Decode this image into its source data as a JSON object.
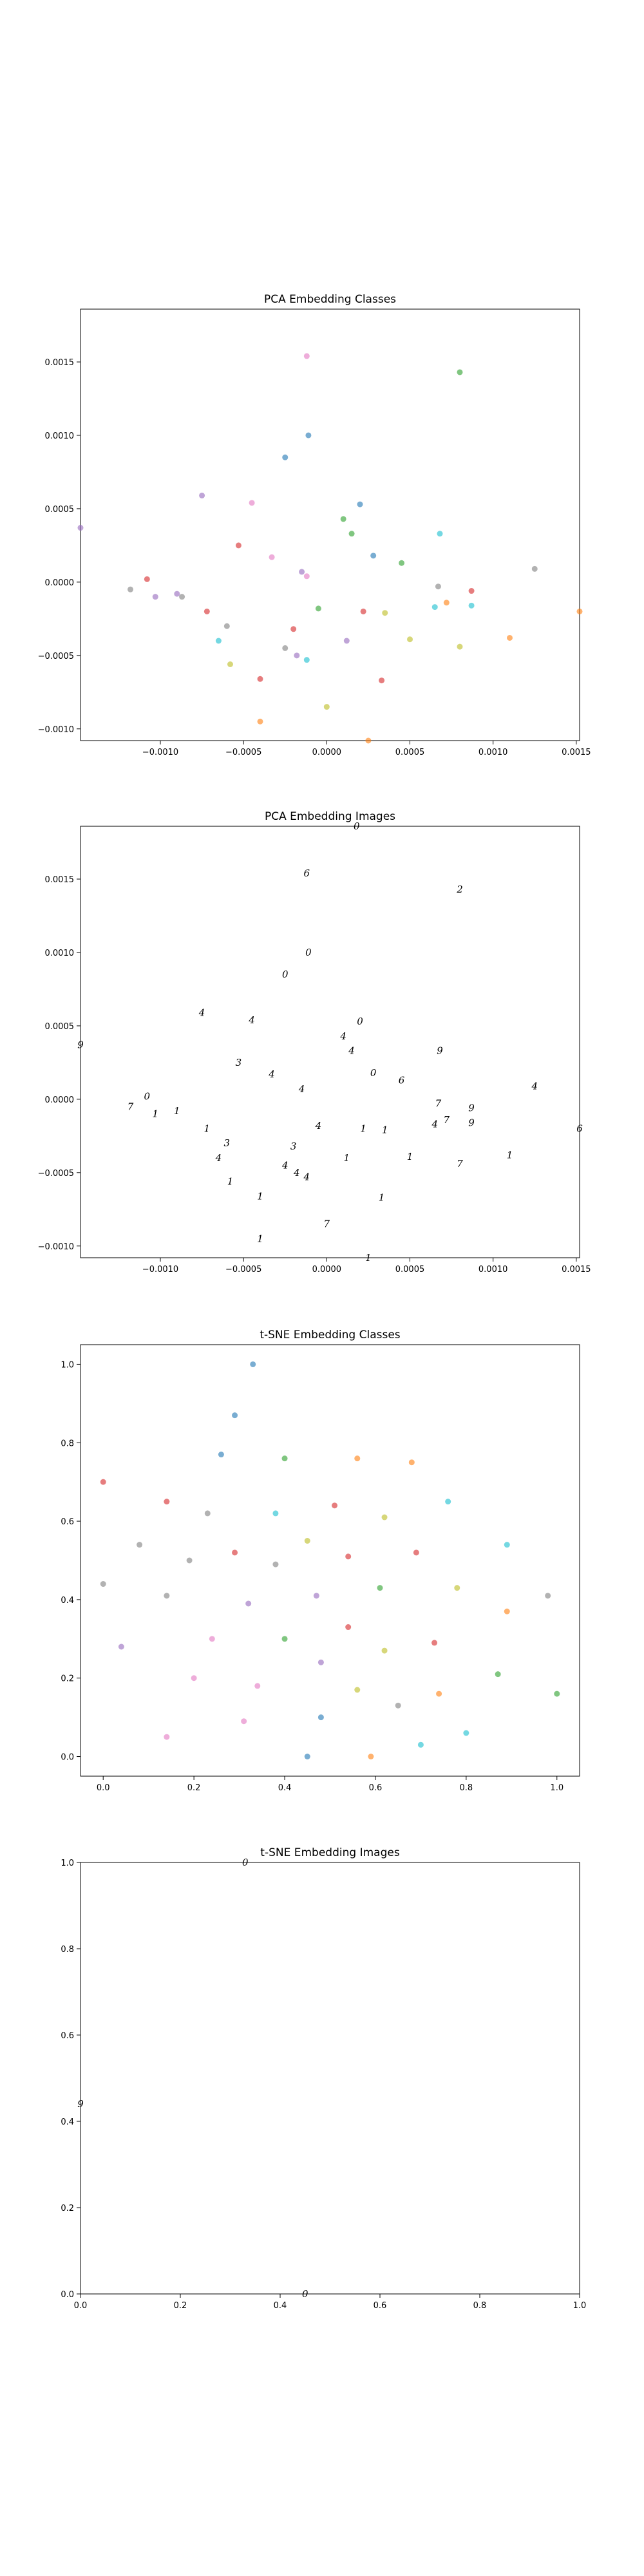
{
  "chart_data": [
    {
      "type": "scatter",
      "title": "PCA Embedding Classes",
      "xlabel": "",
      "ylabel": "",
      "xlim": [
        -0.00148,
        0.00152
      ],
      "ylim": [
        -0.00108,
        0.00186
      ],
      "xticks": [
        -0.001,
        -0.0005,
        0.0,
        0.0005,
        0.001,
        0.0015
      ],
      "xtick_labels": [
        "−0.0010",
        "−0.0005",
        "0.0000",
        "0.0005",
        "0.0010",
        "0.0015"
      ],
      "yticks": [
        -0.001,
        -0.0005,
        0.0,
        0.0005,
        0.001,
        0.0015
      ],
      "ytick_labels": [
        "−0.0010",
        "−0.0005",
        "0.0000",
        "0.0005",
        "0.0010",
        "0.0015"
      ],
      "grid": false,
      "marker": "dot",
      "points": [
        {
          "x": -0.00148,
          "y": 0.00037,
          "c": "#9467bd"
        },
        {
          "x": -0.00118,
          "y": -5e-05,
          "c": "#7f7f7f"
        },
        {
          "x": -0.00108,
          "y": 2e-05,
          "c": "#d62728"
        },
        {
          "x": -0.00103,
          "y": -0.0001,
          "c": "#9467bd"
        },
        {
          "x": -0.0009,
          "y": -8e-05,
          "c": "#9467bd"
        },
        {
          "x": -0.00087,
          "y": -0.0001,
          "c": "#7f7f7f"
        },
        {
          "x": -0.00075,
          "y": 0.00059,
          "c": "#9467bd"
        },
        {
          "x": -0.00072,
          "y": -0.0002,
          "c": "#d62728"
        },
        {
          "x": -0.00065,
          "y": -0.0004,
          "c": "#17becf"
        },
        {
          "x": -0.0006,
          "y": -0.0003,
          "c": "#7f7f7f"
        },
        {
          "x": -0.00058,
          "y": -0.00056,
          "c": "#bcbd22"
        },
        {
          "x": -0.00053,
          "y": 0.00025,
          "c": "#d62728"
        },
        {
          "x": -0.00045,
          "y": 0.00054,
          "c": "#e377c2"
        },
        {
          "x": -0.0004,
          "y": -0.00095,
          "c": "#ff7f0e"
        },
        {
          "x": -0.0004,
          "y": -0.00066,
          "c": "#d62728"
        },
        {
          "x": -0.00033,
          "y": 0.00017,
          "c": "#e377c2"
        },
        {
          "x": -0.00025,
          "y": 0.00085,
          "c": "#1f77b4"
        },
        {
          "x": -0.00025,
          "y": -0.00045,
          "c": "#7f7f7f"
        },
        {
          "x": -0.0002,
          "y": -0.00032,
          "c": "#d62728"
        },
        {
          "x": -0.00018,
          "y": -0.0005,
          "c": "#9467bd"
        },
        {
          "x": -0.00015,
          "y": 7e-05,
          "c": "#9467bd"
        },
        {
          "x": -0.00012,
          "y": 0.00154,
          "c": "#e377c2"
        },
        {
          "x": -0.00011,
          "y": 0.001,
          "c": "#1f77b4"
        },
        {
          "x": -0.00012,
          "y": -0.00053,
          "c": "#17becf"
        },
        {
          "x": -0.00012,
          "y": 4e-05,
          "c": "#e377c2"
        },
        {
          "x": -5e-05,
          "y": -0.00018,
          "c": "#2ca02c"
        },
        {
          "x": 0.0,
          "y": -0.00085,
          "c": "#bcbd22"
        },
        {
          "x": 0.0001,
          "y": 0.00043,
          "c": "#2ca02c"
        },
        {
          "x": 0.00012,
          "y": -0.0004,
          "c": "#9467bd"
        },
        {
          "x": 0.00015,
          "y": 0.00033,
          "c": "#2ca02c"
        },
        {
          "x": 0.0002,
          "y": 0.00053,
          "c": "#1f77b4"
        },
        {
          "x": 0.00022,
          "y": -0.0002,
          "c": "#d62728"
        },
        {
          "x": 0.00025,
          "y": -0.00108,
          "c": "#ff7f0e"
        },
        {
          "x": 0.00028,
          "y": 0.00018,
          "c": "#1f77b4"
        },
        {
          "x": 0.00033,
          "y": -0.00067,
          "c": "#d62728"
        },
        {
          "x": 0.00035,
          "y": -0.00021,
          "c": "#bcbd22"
        },
        {
          "x": 0.00045,
          "y": 0.00013,
          "c": "#2ca02c"
        },
        {
          "x": 0.0005,
          "y": -0.00039,
          "c": "#bcbd22"
        },
        {
          "x": 0.00065,
          "y": -0.00017,
          "c": "#17becf"
        },
        {
          "x": 0.00067,
          "y": -3e-05,
          "c": "#7f7f7f"
        },
        {
          "x": 0.00068,
          "y": 0.00033,
          "c": "#17becf"
        },
        {
          "x": 0.00072,
          "y": -0.00014,
          "c": "#ff7f0e"
        },
        {
          "x": 0.0008,
          "y": 0.00143,
          "c": "#2ca02c"
        },
        {
          "x": 0.0008,
          "y": -0.00044,
          "c": "#bcbd22"
        },
        {
          "x": 0.00087,
          "y": -6e-05,
          "c": "#d62728"
        },
        {
          "x": 0.00087,
          "y": -0.00016,
          "c": "#17becf"
        },
        {
          "x": 0.0011,
          "y": -0.00038,
          "c": "#ff7f0e"
        },
        {
          "x": 0.00125,
          "y": 9e-05,
          "c": "#7f7f7f"
        },
        {
          "x": 0.00152,
          "y": -0.0002,
          "c": "#ff7f0e"
        }
      ]
    },
    {
      "type": "scatter",
      "title": "PCA Embedding Images",
      "xlabel": "",
      "ylabel": "",
      "xlim": [
        -0.00148,
        0.00152
      ],
      "ylim": [
        -0.00108,
        0.00186
      ],
      "xticks": [
        -0.001,
        -0.0005,
        0.0,
        0.0005,
        0.001,
        0.0015
      ],
      "xtick_labels": [
        "−0.0010",
        "−0.0005",
        "0.0000",
        "0.0005",
        "0.0010",
        "0.0015"
      ],
      "yticks": [
        -0.001,
        -0.0005,
        0.0,
        0.0005,
        0.001,
        0.0015
      ],
      "ytick_labels": [
        "−0.0010",
        "−0.0005",
        "0.0000",
        "0.0005",
        "0.0010",
        "0.0015"
      ],
      "grid": false,
      "marker": "image-glyph",
      "points": [
        {
          "x": 0.00018,
          "y": 0.00186,
          "g": "0"
        },
        {
          "x": -0.00012,
          "y": 0.00154,
          "g": "6"
        },
        {
          "x": 0.0008,
          "y": 0.00143,
          "g": "2"
        },
        {
          "x": -0.00011,
          "y": 0.001,
          "g": "0"
        },
        {
          "x": -0.00025,
          "y": 0.00085,
          "g": "0"
        },
        {
          "x": -0.00075,
          "y": 0.00059,
          "g": "4"
        },
        {
          "x": -0.00045,
          "y": 0.00054,
          "g": "4"
        },
        {
          "x": 0.0002,
          "y": 0.00053,
          "g": "0"
        },
        {
          "x": 0.0001,
          "y": 0.00043,
          "g": "4"
        },
        {
          "x": 0.00015,
          "y": 0.00033,
          "g": "4"
        },
        {
          "x": 0.00068,
          "y": 0.00033,
          "g": "9"
        },
        {
          "x": -0.00148,
          "y": 0.00037,
          "g": "9"
        },
        {
          "x": -0.00053,
          "y": 0.00025,
          "g": "3"
        },
        {
          "x": 0.00028,
          "y": 0.00018,
          "g": "0"
        },
        {
          "x": -0.00033,
          "y": 0.00017,
          "g": "4"
        },
        {
          "x": 0.00045,
          "y": 0.00013,
          "g": "6"
        },
        {
          "x": 0.00125,
          "y": 9e-05,
          "g": "4"
        },
        {
          "x": -0.00015,
          "y": 7e-05,
          "g": "4"
        },
        {
          "x": -0.00108,
          "y": 2e-05,
          "g": "0"
        },
        {
          "x": -0.00118,
          "y": -5e-05,
          "g": "7"
        },
        {
          "x": 0.00067,
          "y": -3e-05,
          "g": "7"
        },
        {
          "x": -0.00103,
          "y": -0.0001,
          "g": "1"
        },
        {
          "x": -0.0009,
          "y": -8e-05,
          "g": "1"
        },
        {
          "x": 0.00087,
          "y": -6e-05,
          "g": "9"
        },
        {
          "x": 0.00072,
          "y": -0.00014,
          "g": "7"
        },
        {
          "x": 0.00065,
          "y": -0.00017,
          "g": "4"
        },
        {
          "x": 0.00087,
          "y": -0.00016,
          "g": "9"
        },
        {
          "x": -5e-05,
          "y": -0.00018,
          "g": "4"
        },
        {
          "x": 0.00022,
          "y": -0.0002,
          "g": "1"
        },
        {
          "x": 0.00035,
          "y": -0.00021,
          "g": "1"
        },
        {
          "x": -0.00072,
          "y": -0.0002,
          "g": "1"
        },
        {
          "x": 0.00152,
          "y": -0.0002,
          "g": "6"
        },
        {
          "x": -0.0006,
          "y": -0.0003,
          "g": "3"
        },
        {
          "x": -0.0002,
          "y": -0.00032,
          "g": "3"
        },
        {
          "x": -0.00065,
          "y": -0.0004,
          "g": "4"
        },
        {
          "x": 0.00012,
          "y": -0.0004,
          "g": "1"
        },
        {
          "x": 0.0005,
          "y": -0.00039,
          "g": "1"
        },
        {
          "x": 0.0011,
          "y": -0.00038,
          "g": "1"
        },
        {
          "x": 0.0008,
          "y": -0.00044,
          "g": "7"
        },
        {
          "x": -0.00025,
          "y": -0.00045,
          "g": "4"
        },
        {
          "x": -0.00018,
          "y": -0.0005,
          "g": "4"
        },
        {
          "x": -0.00012,
          "y": -0.00053,
          "g": "4"
        },
        {
          "x": -0.00058,
          "y": -0.00056,
          "g": "1"
        },
        {
          "x": -0.0004,
          "y": -0.00066,
          "g": "1"
        },
        {
          "x": 0.00033,
          "y": -0.00067,
          "g": "1"
        },
        {
          "x": 0.0,
          "y": -0.00085,
          "g": "7"
        },
        {
          "x": -0.0004,
          "y": -0.00095,
          "g": "1"
        },
        {
          "x": 0.00025,
          "y": -0.00108,
          "g": "1"
        }
      ]
    },
    {
      "type": "scatter",
      "title": "t-SNE Embedding Classes",
      "xlabel": "",
      "ylabel": "",
      "xlim": [
        -0.05,
        1.05
      ],
      "ylim": [
        -0.05,
        1.05
      ],
      "xticks": [
        0.0,
        0.2,
        0.4,
        0.6,
        0.8,
        1.0
      ],
      "xtick_labels": [
        "0.0",
        "0.2",
        "0.4",
        "0.6",
        "0.8",
        "1.0"
      ],
      "yticks": [
        0.0,
        0.2,
        0.4,
        0.6,
        0.8,
        1.0
      ],
      "ytick_labels": [
        "0.0",
        "0.2",
        "0.4",
        "0.6",
        "0.8",
        "1.0"
      ],
      "grid": false,
      "marker": "dot",
      "points": [
        {
          "x": 0.33,
          "y": 1.0,
          "c": "#1f77b4"
        },
        {
          "x": 0.29,
          "y": 0.87,
          "c": "#1f77b4"
        },
        {
          "x": 0.26,
          "y": 0.77,
          "c": "#1f77b4"
        },
        {
          "x": 0.4,
          "y": 0.76,
          "c": "#2ca02c"
        },
        {
          "x": 0.56,
          "y": 0.76,
          "c": "#ff7f0e"
        },
        {
          "x": 0.68,
          "y": 0.75,
          "c": "#ff7f0e"
        },
        {
          "x": 0.0,
          "y": 0.7,
          "c": "#d62728"
        },
        {
          "x": 0.14,
          "y": 0.65,
          "c": "#d62728"
        },
        {
          "x": 0.51,
          "y": 0.64,
          "c": "#d62728"
        },
        {
          "x": 0.76,
          "y": 0.65,
          "c": "#17becf"
        },
        {
          "x": 0.23,
          "y": 0.62,
          "c": "#7f7f7f"
        },
        {
          "x": 0.38,
          "y": 0.62,
          "c": "#17becf"
        },
        {
          "x": 0.62,
          "y": 0.61,
          "c": "#bcbd22"
        },
        {
          "x": 0.45,
          "y": 0.55,
          "c": "#bcbd22"
        },
        {
          "x": 0.08,
          "y": 0.54,
          "c": "#7f7f7f"
        },
        {
          "x": 0.29,
          "y": 0.52,
          "c": "#d62728"
        },
        {
          "x": 0.69,
          "y": 0.52,
          "c": "#d62728"
        },
        {
          "x": 0.89,
          "y": 0.54,
          "c": "#17becf"
        },
        {
          "x": 0.19,
          "y": 0.5,
          "c": "#7f7f7f"
        },
        {
          "x": 0.54,
          "y": 0.51,
          "c": "#d62728"
        },
        {
          "x": 0.38,
          "y": 0.49,
          "c": "#7f7f7f"
        },
        {
          "x": 0.0,
          "y": 0.44,
          "c": "#7f7f7f"
        },
        {
          "x": 0.61,
          "y": 0.43,
          "c": "#2ca02c"
        },
        {
          "x": 0.78,
          "y": 0.43,
          "c": "#bcbd22"
        },
        {
          "x": 0.14,
          "y": 0.41,
          "c": "#7f7f7f"
        },
        {
          "x": 0.47,
          "y": 0.41,
          "c": "#9467bd"
        },
        {
          "x": 0.98,
          "y": 0.41,
          "c": "#7f7f7f"
        },
        {
          "x": 0.32,
          "y": 0.39,
          "c": "#9467bd"
        },
        {
          "x": 0.89,
          "y": 0.37,
          "c": "#ff7f0e"
        },
        {
          "x": 0.54,
          "y": 0.33,
          "c": "#d62728"
        },
        {
          "x": 0.24,
          "y": 0.3,
          "c": "#e377c2"
        },
        {
          "x": 0.4,
          "y": 0.3,
          "c": "#2ca02c"
        },
        {
          "x": 0.04,
          "y": 0.28,
          "c": "#9467bd"
        },
        {
          "x": 0.73,
          "y": 0.29,
          "c": "#d62728"
        },
        {
          "x": 0.62,
          "y": 0.27,
          "c": "#bcbd22"
        },
        {
          "x": 0.48,
          "y": 0.24,
          "c": "#9467bd"
        },
        {
          "x": 0.87,
          "y": 0.21,
          "c": "#2ca02c"
        },
        {
          "x": 0.2,
          "y": 0.2,
          "c": "#e377c2"
        },
        {
          "x": 0.34,
          "y": 0.18,
          "c": "#e377c2"
        },
        {
          "x": 0.56,
          "y": 0.17,
          "c": "#bcbd22"
        },
        {
          "x": 0.74,
          "y": 0.16,
          "c": "#ff7f0e"
        },
        {
          "x": 1.0,
          "y": 0.16,
          "c": "#2ca02c"
        },
        {
          "x": 0.65,
          "y": 0.13,
          "c": "#7f7f7f"
        },
        {
          "x": 0.48,
          "y": 0.1,
          "c": "#1f77b4"
        },
        {
          "x": 0.31,
          "y": 0.09,
          "c": "#e377c2"
        },
        {
          "x": 0.8,
          "y": 0.06,
          "c": "#17becf"
        },
        {
          "x": 0.14,
          "y": 0.05,
          "c": "#e377c2"
        },
        {
          "x": 0.7,
          "y": 0.03,
          "c": "#17becf"
        },
        {
          "x": 0.45,
          "y": 0.0,
          "c": "#1f77b4"
        },
        {
          "x": 0.59,
          "y": 0.0,
          "c": "#ff7f0e"
        }
      ]
    },
    {
      "type": "scatter",
      "title": "t-SNE Embedding Images",
      "xlabel": "",
      "ylabel": "",
      "xlim": [
        0.0,
        1.0
      ],
      "ylim": [
        0.0,
        1.0
      ],
      "xticks": [
        0.0,
        0.2,
        0.4,
        0.6,
        0.8,
        1.0
      ],
      "xtick_labels": [
        "0.0",
        "0.2",
        "0.4",
        "0.6",
        "0.8",
        "1.0"
      ],
      "yticks": [
        0.0,
        0.2,
        0.4,
        0.6,
        0.8,
        1.0
      ],
      "ytick_labels": [
        "0.0",
        "0.2",
        "0.4",
        "0.6",
        "0.8",
        "1.0"
      ],
      "grid": false,
      "marker": "image-glyph",
      "points": [
        {
          "x": 0.33,
          "y": 1.0,
          "g": "0"
        },
        {
          "x": 0.0,
          "y": 0.44,
          "g": "9"
        },
        {
          "x": 0.45,
          "y": 0.0,
          "g": "0"
        }
      ]
    }
  ]
}
